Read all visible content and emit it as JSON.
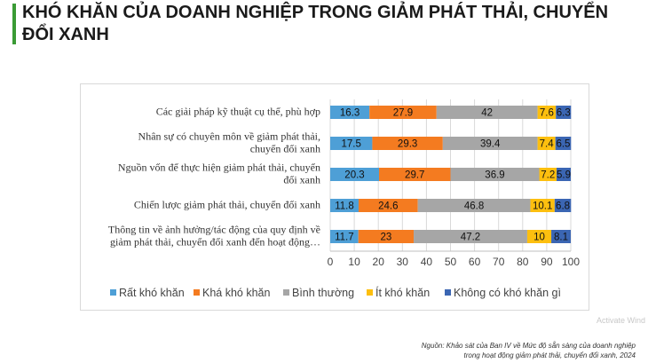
{
  "title": "KHÓ KHĂN CỦA DOANH NGHIỆP TRONG GIẢM PHÁT THẢI, CHUYỂN ĐỔI XANH",
  "source_line1": "Nguồn: Khảo sát của Ban IV về Mức độ sẵn sàng của doanh nghiệp",
  "source_line2": "trong hoạt động giảm phát thải, chuyển đổi xanh, 2024",
  "watermark": "Activate Wind",
  "colors": {
    "series": [
      "#4e9fd6",
      "#f47b20",
      "#a6a6a6",
      "#fdbf0f",
      "#3b66b3"
    ],
    "title_bar": "#3a9b35"
  },
  "chart_data": {
    "type": "bar",
    "orientation": "horizontal",
    "stacked": true,
    "categories": [
      [
        "Các giải  pháp kỹ thuật cụ thể, phù hợp"
      ],
      [
        "Nhân sự có chuyên môn về giảm phát thải,",
        "chuyển đổi xanh"
      ],
      [
        "Nguồn vốn để thực hiện giảm phát thải, chuyển",
        "đổi xanh"
      ],
      [
        "Chiến lược giảm phát thải, chuyển đổi xanh"
      ],
      [
        "Thông tin về ảnh hưởng/tác động của quy định về",
        "giảm phát thải, chuyển đổi xanh đến hoạt động…"
      ]
    ],
    "series": [
      {
        "name": "Rất khó khăn",
        "values": [
          16.3,
          17.5,
          20.3,
          11.8,
          11.7
        ]
      },
      {
        "name": "Khá khó khăn",
        "values": [
          27.9,
          29.3,
          29.7,
          24.6,
          23
        ]
      },
      {
        "name": "Bình thường",
        "values": [
          42,
          39.4,
          36.9,
          46.8,
          47.2
        ]
      },
      {
        "name": "Ít khó khăn",
        "values": [
          7.6,
          7.4,
          7.2,
          10.1,
          10
        ]
      },
      {
        "name": "Không có khó khăn gì",
        "values": [
          6.3,
          6.5,
          5.9,
          6.8,
          8.1
        ]
      }
    ],
    "xlim": [
      0,
      100
    ],
    "xticks": [
      0,
      10,
      20,
      30,
      40,
      50,
      60,
      70,
      80,
      90,
      100
    ],
    "grid": true,
    "legend": "bottom"
  }
}
